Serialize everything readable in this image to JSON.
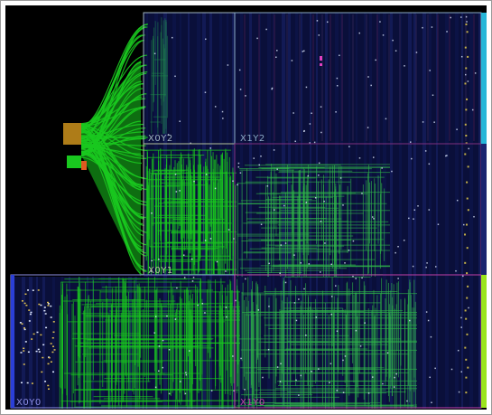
{
  "device": {
    "regions": [
      {
        "id": "X0Y2",
        "label": "X0Y2",
        "color": "#9fb3c0"
      },
      {
        "id": "X1Y2",
        "label": "X1Y2",
        "color": "#8aa8c4"
      },
      {
        "id": "X0Y1",
        "label": "X0Y1",
        "color": "#b4c29a"
      },
      {
        "id": "X1Y1",
        "label": "",
        "color": "#7f2f7f"
      },
      {
        "id": "X0Y0",
        "label": "X0Y0",
        "color": "#8d8ee6"
      },
      {
        "id": "X1Y0",
        "label": "X1Y0",
        "color": "#c23fa8"
      }
    ],
    "colors": {
      "background": "#000000",
      "fabric": "#0a0f3a",
      "route": "#19c81f",
      "route_dim": "#1e8a4a",
      "highlight_cyan": "#27b6d8",
      "highlight_green": "#9be41c",
      "highlight_blue": "#2b3fd8",
      "io_orange": "#e0a020"
    },
    "icons": [
      "clock-region-grid",
      "io-bank-marker"
    ]
  }
}
